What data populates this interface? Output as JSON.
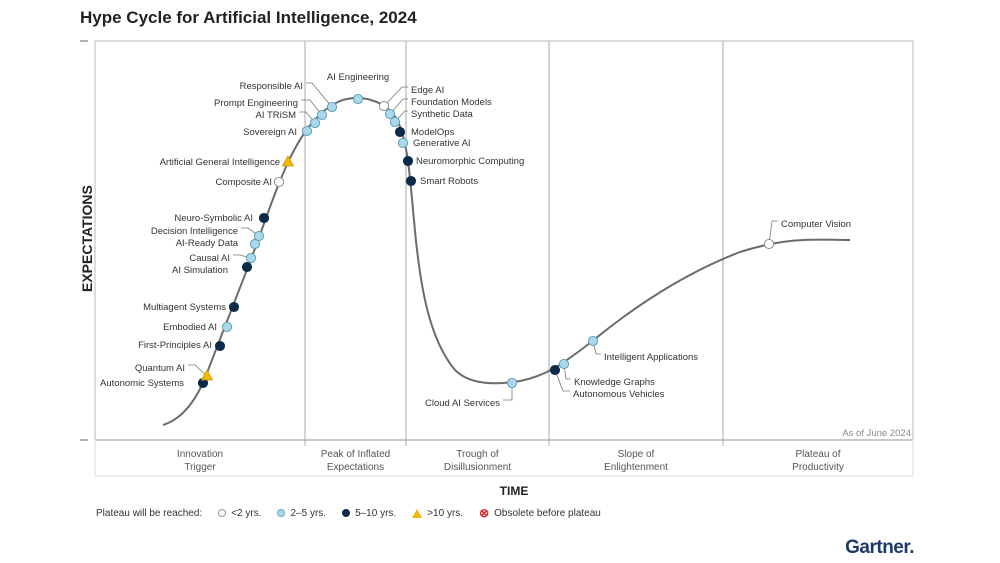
{
  "chart_data": {
    "type": "hype-cycle",
    "title": "Hype Cycle for Artificial Intelligence, 2024",
    "xlabel": "TIME",
    "ylabel": "EXPECTATIONS",
    "as_of": "As of June 2024",
    "phases": [
      "Innovation\nTrigger",
      "Peak of Inflated\nExpectations",
      "Trough of\nDisillusionment",
      "Slope of\nEnlightenment",
      "Plateau of\nProductivity"
    ],
    "legend": {
      "title": "Plateau will be reached:",
      "items": [
        {
          "key": "lt2",
          "label": "<2 yrs.",
          "color": "#ffffff"
        },
        {
          "key": "2to5",
          "label": "2–5 yrs.",
          "color": "#a8d8ea"
        },
        {
          "key": "5to10",
          "label": "5–10 yrs.",
          "color": "#0b2a4a"
        },
        {
          "key": "gt10",
          "label": ">10 yrs.",
          "color": "#f2b705"
        },
        {
          "key": "obsolete",
          "label": "Obsolete before plateau",
          "color": "#d9262c"
        }
      ]
    },
    "technologies": [
      {
        "name": "Autonomic Systems",
        "phase": "Innovation Trigger",
        "plateau": "5to10"
      },
      {
        "name": "Quantum AI",
        "phase": "Innovation Trigger",
        "plateau": "gt10"
      },
      {
        "name": "First-Principles AI",
        "phase": "Innovation Trigger",
        "plateau": "5to10"
      },
      {
        "name": "Embodied AI",
        "phase": "Innovation Trigger",
        "plateau": "2to5"
      },
      {
        "name": "Multiagent Systems",
        "phase": "Innovation Trigger",
        "plateau": "5to10"
      },
      {
        "name": "AI Simulation",
        "phase": "Innovation Trigger",
        "plateau": "5to10"
      },
      {
        "name": "Causal AI",
        "phase": "Innovation Trigger",
        "plateau": "2to5"
      },
      {
        "name": "AI-Ready Data",
        "phase": "Innovation Trigger",
        "plateau": "2to5"
      },
      {
        "name": "Decision Intelligence",
        "phase": "Innovation Trigger",
        "plateau": "2to5"
      },
      {
        "name": "Neuro-Symbolic AI",
        "phase": "Innovation Trigger",
        "plateau": "5to10"
      },
      {
        "name": "Composite AI",
        "phase": "Innovation Trigger",
        "plateau": "lt2"
      },
      {
        "name": "Artificial General Intelligence",
        "phase": "Innovation Trigger",
        "plateau": "gt10"
      },
      {
        "name": "Sovereign AI",
        "phase": "Peak of Inflated Expectations",
        "plateau": "2to5"
      },
      {
        "name": "AI TRiSM",
        "phase": "Peak of Inflated Expectations",
        "plateau": "2to5"
      },
      {
        "name": "Prompt Engineering",
        "phase": "Peak of Inflated Expectations",
        "plateau": "2to5"
      },
      {
        "name": "Responsible AI",
        "phase": "Peak of Inflated Expectations",
        "plateau": "2to5"
      },
      {
        "name": "AI Engineering",
        "phase": "Peak of Inflated Expectations",
        "plateau": "2to5"
      },
      {
        "name": "Edge AI",
        "phase": "Peak of Inflated Expectations",
        "plateau": "lt2"
      },
      {
        "name": "Foundation Models",
        "phase": "Peak of Inflated Expectations",
        "plateau": "2to5"
      },
      {
        "name": "Synthetic Data",
        "phase": "Peak of Inflated Expectations",
        "plateau": "2to5"
      },
      {
        "name": "ModelOps",
        "phase": "Trough of Disillusionment",
        "plateau": "5to10"
      },
      {
        "name": "Generative AI",
        "phase": "Trough of Disillusionment",
        "plateau": "2to5"
      },
      {
        "name": "Neuromorphic Computing",
        "phase": "Trough of Disillusionment",
        "plateau": "5to10"
      },
      {
        "name": "Smart Robots",
        "phase": "Trough of Disillusionment",
        "plateau": "5to10"
      },
      {
        "name": "Cloud AI Services",
        "phase": "Trough of Disillusionment",
        "plateau": "2to5"
      },
      {
        "name": "Autonomous Vehicles",
        "phase": "Slope of Enlightenment",
        "plateau": "5to10"
      },
      {
        "name": "Knowledge Graphs",
        "phase": "Slope of Enlightenment",
        "plateau": "2to5"
      },
      {
        "name": "Intelligent Applications",
        "phase": "Slope of Enlightenment",
        "plateau": "2to5"
      },
      {
        "name": "Computer Vision",
        "phase": "Plateau of Productivity",
        "plateau": "lt2"
      }
    ]
  },
  "brand": "Gartner."
}
